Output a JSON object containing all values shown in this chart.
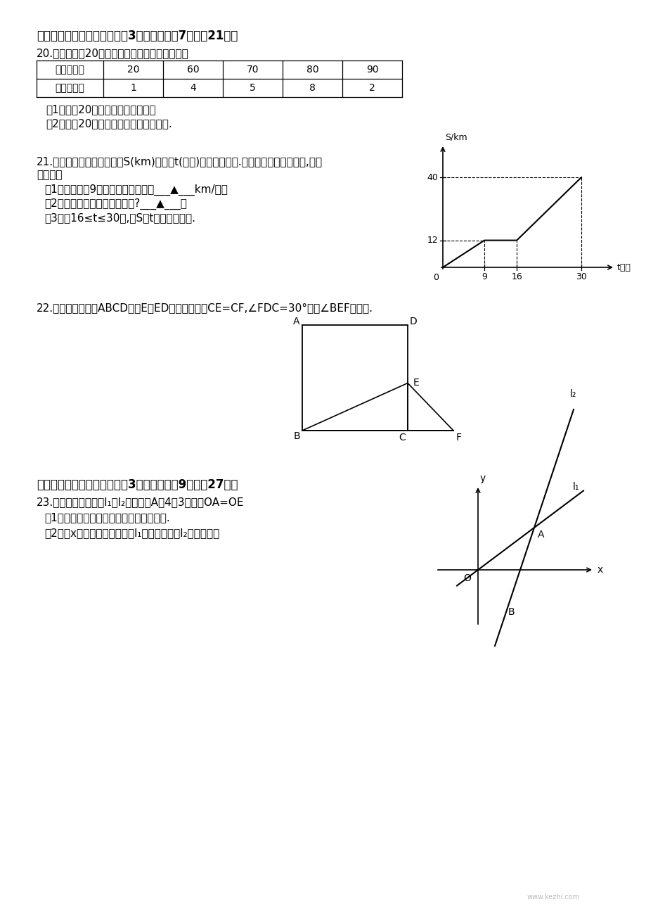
{
  "background_color": "#ffffff",
  "page_width": 9.2,
  "page_height": 13.02,
  "section4_title": "四、解答题（二）（本大题共3小题，每小题7分，共21分）",
  "q20_intro": "20.下表是某班20名学生外语测试的成绩统计表：",
  "table_headers": [
    "成绩（分）",
    "20",
    "60",
    "70",
    "80",
    "90"
  ],
  "table_row2": [
    "人数（人）",
    "1",
    "4",
    "5",
    "8",
    "2"
  ],
  "q20_sub1": "（1）求这20名学生成绩的平均数；",
  "q20_sub2": "（2）写出20名学生成绩的众数和中位数.",
  "q21_intro": "21.如图是某汽车行驶的路程S(km)与时间t(分钟)的函数关系图.观察图中所提供的信息,解答",
  "q21_intro2": "下列问题",
  "q21_sub1": "（1）汽车在前9分钟内的平均速度是___▲___km/分；",
  "q21_sub2": "（2）汽车在中途停了多长时间?___▲___；",
  "q21_sub3": "（3）当16≤t≤30时,求S与t的函数关系式.",
  "q22_intro": "22.如图，在正方形ABCD中，E为ED边上的一点，CE=CF,∠FDC=30°，求∠BEF的度数.",
  "section5_title": "五、解答题（三）（本大题共3小题，每小题9分，共27分）",
  "q23_intro": "23.如图，已知两直线l₁和l₂相交于点A（4，3），且OA=OE",
  "q23_sub1": "（1）分别求出两条直线对应的函数解析式.",
  "q23_sub2": "（2）当x为何值时，一次函数l₁的函数值大于l₂的函数值？",
  "watermark": "www.kezhi.com"
}
